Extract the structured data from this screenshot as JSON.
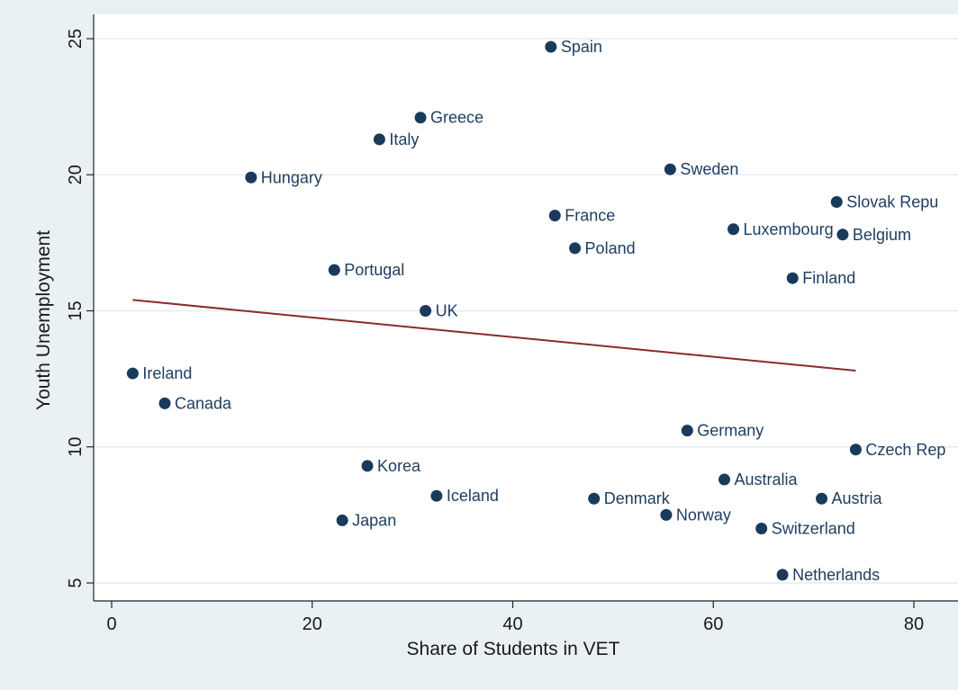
{
  "chart_data": {
    "type": "scatter",
    "xlabel": "Share of Students in VET",
    "ylabel": "Youth Unemployment",
    "xlim": [
      0,
      80
    ],
    "ylim": [
      5,
      25
    ],
    "xticks": [
      "0",
      "20",
      "40",
      "60",
      "80"
    ],
    "yticks": [
      "5",
      "10",
      "15",
      "20",
      "25"
    ],
    "grid": "horizontal",
    "marker_color": "#1a3a5c",
    "label_color": "#1f3f61",
    "fit_line_color": "#8b2a2a",
    "points": [
      {
        "label": "Spain",
        "x": 43.8,
        "y": 24.7
      },
      {
        "label": "Greece",
        "x": 30.8,
        "y": 22.1
      },
      {
        "label": "Italy",
        "x": 26.7,
        "y": 21.3
      },
      {
        "label": "Hungary",
        "x": 13.9,
        "y": 19.9
      },
      {
        "label": "Sweden",
        "x": 55.7,
        "y": 20.2
      },
      {
        "label": "Slovak Repu",
        "x": 72.3,
        "y": 19.0
      },
      {
        "label": "France",
        "x": 44.2,
        "y": 18.5
      },
      {
        "label": "Luxembourg",
        "x": 62.0,
        "y": 18.0
      },
      {
        "label": "Belgium",
        "x": 72.9,
        "y": 17.8
      },
      {
        "label": "Poland",
        "x": 46.2,
        "y": 17.3
      },
      {
        "label": "Portugal",
        "x": 22.2,
        "y": 16.5
      },
      {
        "label": "Finland",
        "x": 67.9,
        "y": 16.2
      },
      {
        "label": "UK",
        "x": 31.3,
        "y": 15.0
      },
      {
        "label": "Ireland",
        "x": 2.1,
        "y": 12.7
      },
      {
        "label": "Canada",
        "x": 5.3,
        "y": 11.6
      },
      {
        "label": "Germany",
        "x": 57.4,
        "y": 10.6
      },
      {
        "label": "Czech Rep",
        "x": 74.2,
        "y": 9.9
      },
      {
        "label": "Korea",
        "x": 25.5,
        "y": 9.3
      },
      {
        "label": "Australia",
        "x": 61.1,
        "y": 8.8
      },
      {
        "label": "Iceland",
        "x": 32.4,
        "y": 8.2
      },
      {
        "label": "Denmark",
        "x": 48.1,
        "y": 8.1
      },
      {
        "label": "Austria",
        "x": 70.8,
        "y": 8.1
      },
      {
        "label": "Norway",
        "x": 55.3,
        "y": 7.5
      },
      {
        "label": "Japan",
        "x": 23.0,
        "y": 7.3
      },
      {
        "label": "Switzerland",
        "x": 64.8,
        "y": 7.0
      },
      {
        "label": "Netherlands",
        "x": 66.9,
        "y": 5.3
      }
    ],
    "fit_line": {
      "x": [
        2.1,
        74.2
      ],
      "y": [
        15.4,
        12.8
      ]
    }
  }
}
